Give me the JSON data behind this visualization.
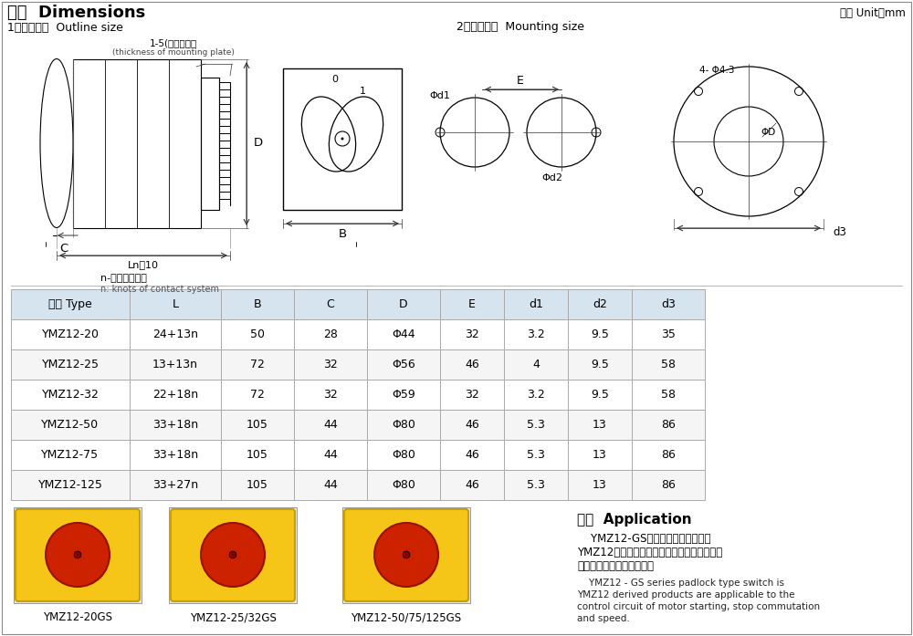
{
  "title": "尺寸  Dimensions",
  "unit_text": "单位 Unit：mm",
  "outline_label": "1、外形尺寸  Outline size",
  "mounting_label": "2、安装尺寸  Mounting size",
  "table_headers": [
    "型号 Type",
    "L",
    "B",
    "C",
    "D",
    "E",
    "d1",
    "d2",
    "d3"
  ],
  "table_data": [
    [
      "YMZ12-20",
      "24+13n",
      "50",
      "28",
      "Φ44",
      "32",
      "3.2",
      "9.5",
      "35"
    ],
    [
      "YMZ12-25",
      "13+13n",
      "72",
      "32",
      "Φ56",
      "46",
      "4",
      "9.5",
      "58"
    ],
    [
      "YMZ12-32",
      "22+18n",
      "72",
      "32",
      "Φ59",
      "32",
      "3.2",
      "9.5",
      "58"
    ],
    [
      "YMZ12-50",
      "33+18n",
      "105",
      "44",
      "Φ80",
      "46",
      "5.3",
      "13",
      "86"
    ],
    [
      "YMZ12-75",
      "33+18n",
      "105",
      "44",
      "Φ80",
      "46",
      "5.3",
      "13",
      "86"
    ],
    [
      "YMZ12-125",
      "33+27n",
      "105",
      "44",
      "Φ80",
      "46",
      "5.3",
      "13",
      "86"
    ]
  ],
  "header_bg": "#d6e4f0",
  "row_bg_odd": "#ffffff",
  "row_bg_even": "#f5f5f5",
  "border_color": "#aaaaaa",
  "app_title": "用途  Application",
  "app_cn": "    YMZ12-GS系列挂锁型组合开关是\nYMZ12派生产品适用于控制电路中作电动机起\n动，停止换向、变速之用。",
  "app_en": "    YMZ12 - GS series padlock type switch is\nYMZ12 derived products are applicable to the\ncontrol circuit of motor starting, stop commutation\nand speed.",
  "photo_labels": [
    "YMZ12-20GS",
    "YMZ12-25/32GS",
    "YMZ12-50/75/125GS"
  ],
  "mounting_note_cn": "n-接触系统节数",
  "mounting_note_en": "n: knots of contact system",
  "plate_note_cn": "1-5(安装板厚）",
  "plate_note_en": "(thickness of mounting plate)"
}
